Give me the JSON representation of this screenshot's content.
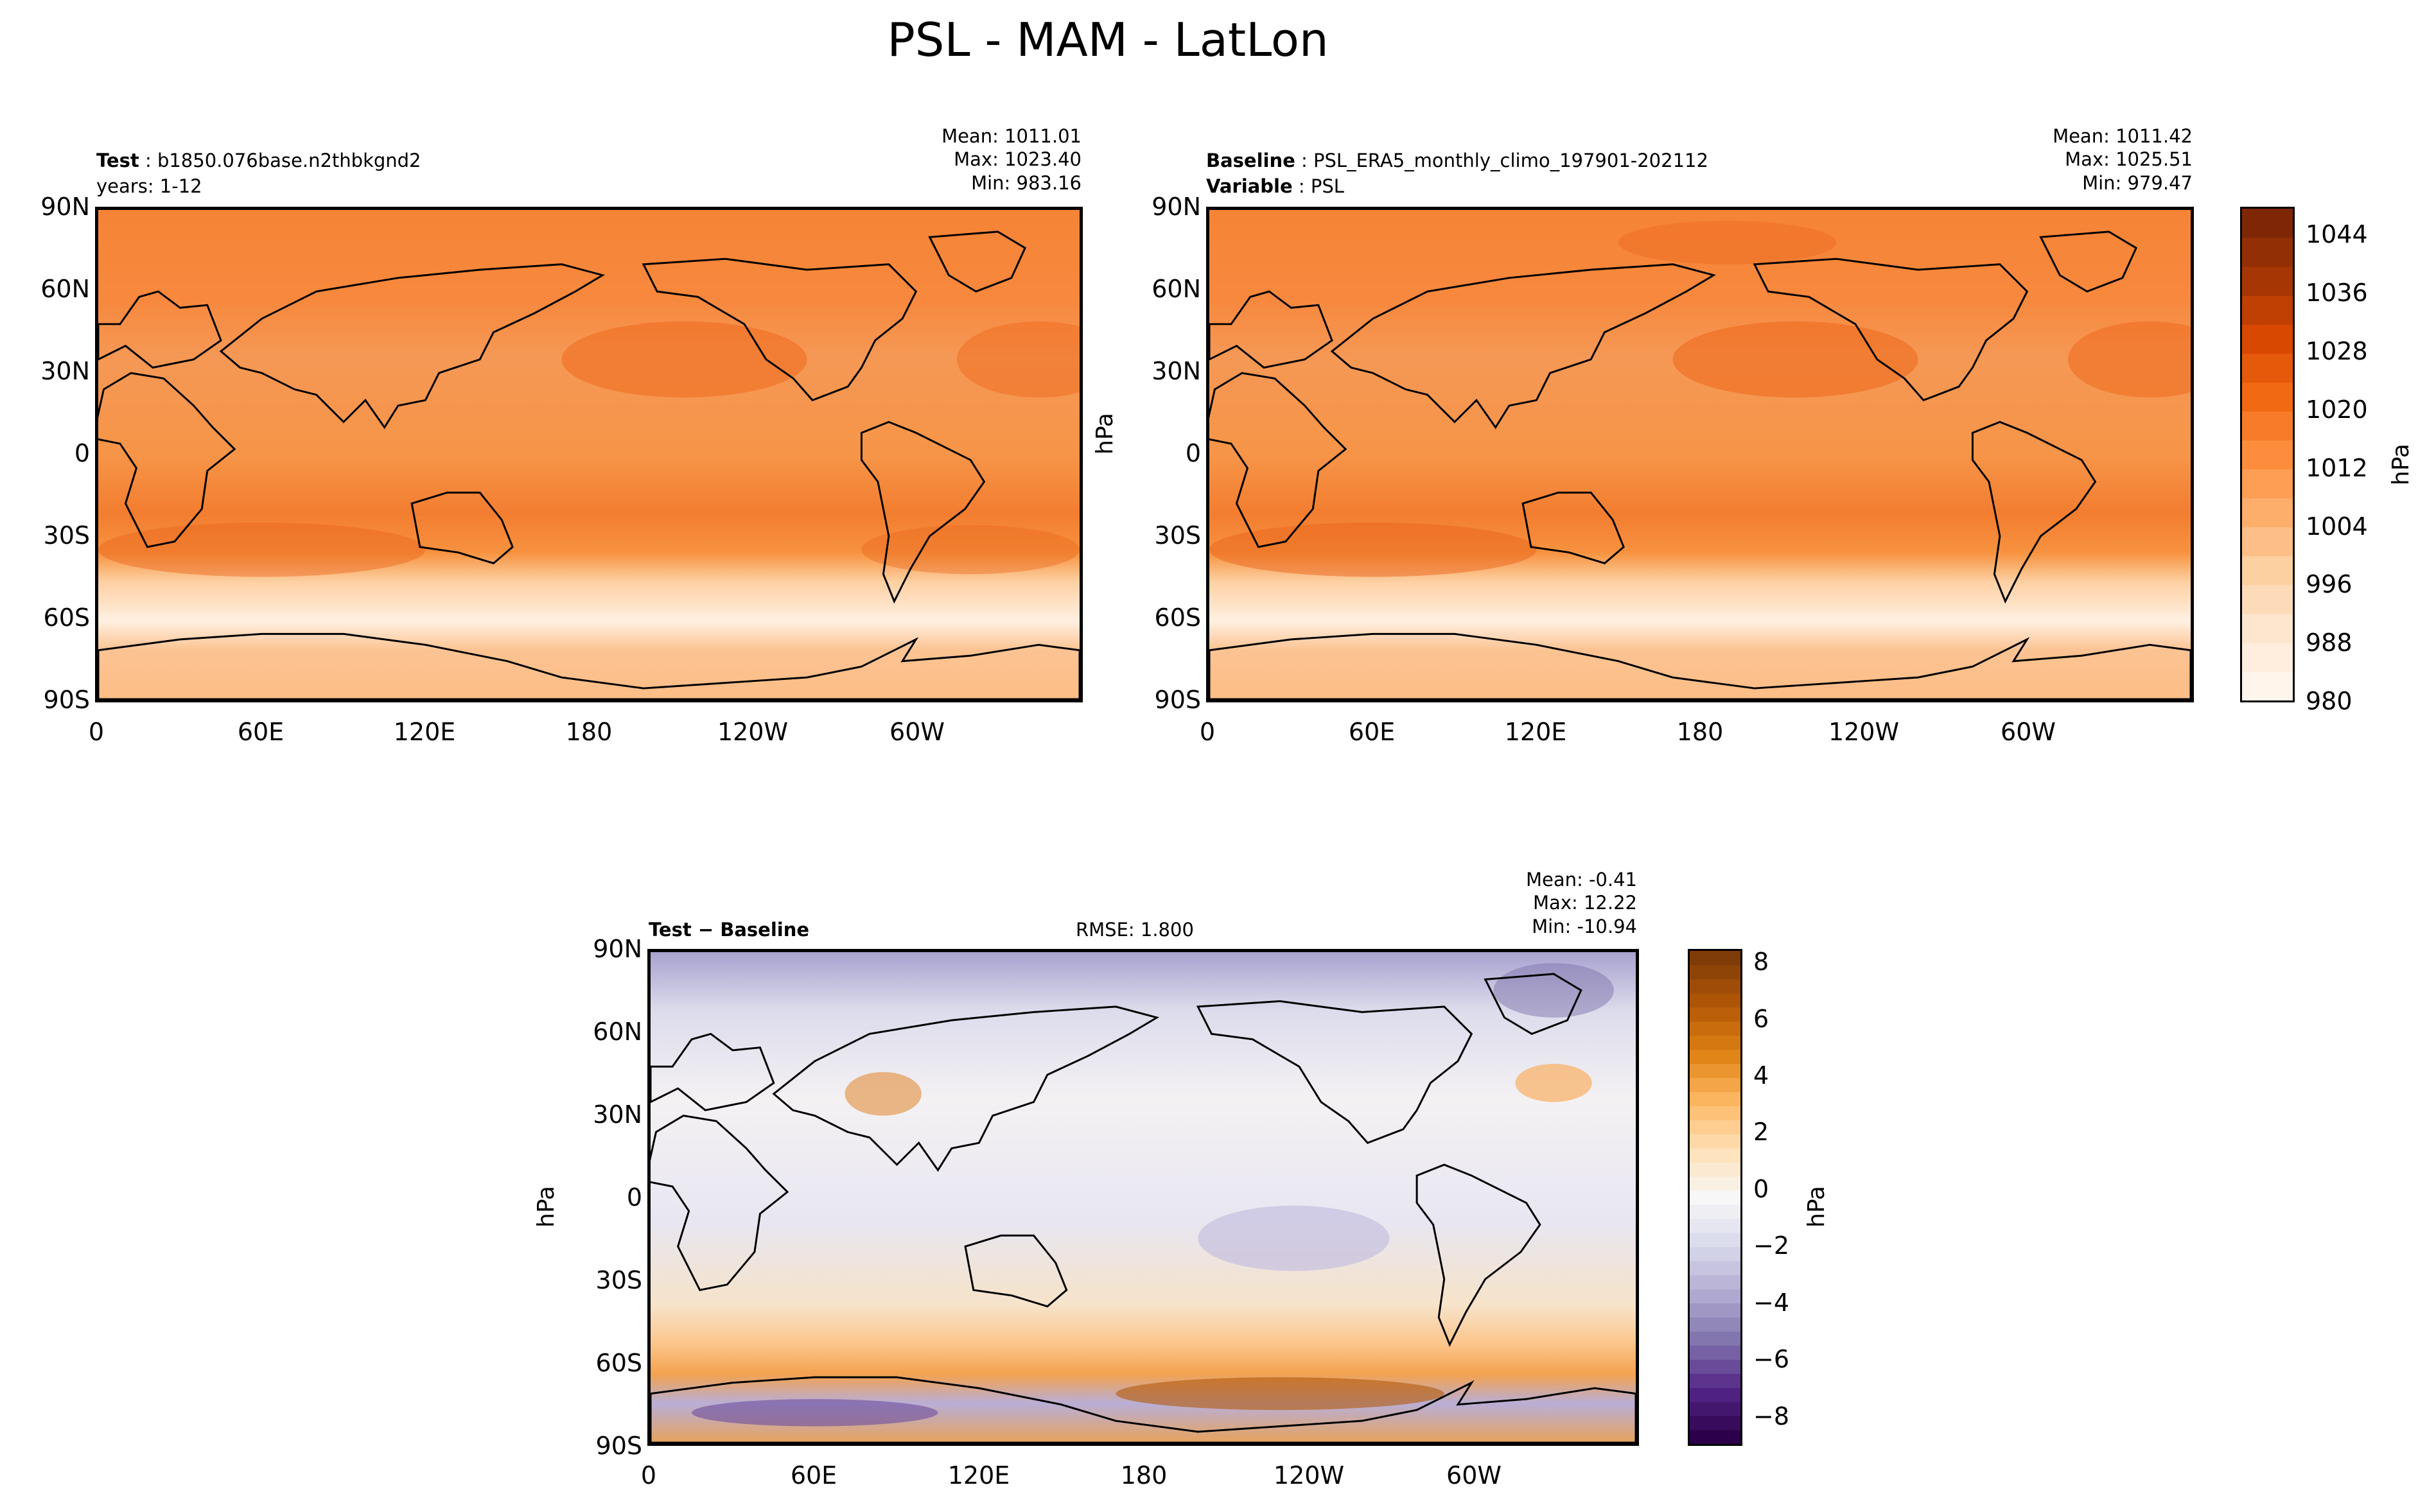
{
  "figure_title": "PSL - MAM - LatLon",
  "panels": {
    "test": {
      "label_bold": "Test",
      "label_value": "b1850.076base.n2thbkgnd2",
      "line2": "years: 1-12",
      "stats": {
        "mean": "Mean: 1011.01",
        "max": "Max: 1023.40",
        "min": "Min: 983.16"
      }
    },
    "baseline": {
      "label_bold": "Baseline",
      "label_value": "PSL_ERA5_monthly_climo_197901-202112",
      "line2_bold": "Variable",
      "line2_value": "PSL",
      "stats": {
        "mean": "Mean: 1011.42",
        "max": "Max: 1025.51",
        "min": "Min: 979.47"
      },
      "ylabel": "hPa"
    },
    "diff": {
      "label": "Test − Baseline",
      "rmse": "RMSE: 1.800",
      "stats": {
        "mean": "Mean: -0.41",
        "max": "Max: 12.22",
        "min": "Min: -10.94"
      },
      "ylabel": "hPa"
    }
  },
  "axes": {
    "lat_ticks": [
      "90N",
      "60N",
      "30N",
      "0",
      "30S",
      "60S",
      "90S"
    ],
    "lon_ticks": [
      "0",
      "60E",
      "120E",
      "180",
      "120W",
      "60W"
    ]
  },
  "colorbars": {
    "psl": {
      "label": "hPa",
      "min": 980,
      "max": 1048,
      "step": 4,
      "ticks": [
        "1044",
        "1036",
        "1028",
        "1020",
        "1012",
        "1004",
        "996",
        "988",
        "980"
      ],
      "colors": [
        "#fff5eb",
        "#fee6ce",
        "#fdd0a2",
        "#fdae6b",
        "#fd8d3c",
        "#f16913",
        "#d94801",
        "#a63603",
        "#7f2704"
      ]
    },
    "diff": {
      "label": "hPa",
      "min": -9,
      "max": 8.5,
      "ticks": [
        "8",
        "6",
        "4",
        "2",
        "0",
        "−2",
        "−4",
        "−6",
        "−8"
      ],
      "colors": [
        "#2d004b",
        "#542788",
        "#8073ac",
        "#b2abd2",
        "#d8daeb",
        "#f7f7f7",
        "#fee0b6",
        "#fdb863",
        "#e08214",
        "#b35806",
        "#7f3b08"
      ]
    }
  },
  "chart_data": [
    {
      "type": "heatmap",
      "name": "Test",
      "variable": "PSL",
      "units": "hPa",
      "season": "MAM",
      "mean": 1011.01,
      "max": 1023.4,
      "min": 983.16,
      "xlim": [
        0,
        360
      ],
      "ylim": [
        -90,
        90
      ]
    },
    {
      "type": "heatmap",
      "name": "Baseline",
      "variable": "PSL",
      "units": "hPa",
      "season": "MAM",
      "mean": 1011.42,
      "max": 1025.51,
      "min": 979.47,
      "xlim": [
        0,
        360
      ],
      "ylim": [
        -90,
        90
      ]
    },
    {
      "type": "heatmap",
      "name": "Test - Baseline",
      "variable": "PSL",
      "units": "hPa",
      "season": "MAM",
      "mean": -0.41,
      "max": 12.22,
      "min": -10.94,
      "rmse": 1.8,
      "xlim": [
        0,
        360
      ],
      "ylim": [
        -90,
        90
      ]
    }
  ]
}
